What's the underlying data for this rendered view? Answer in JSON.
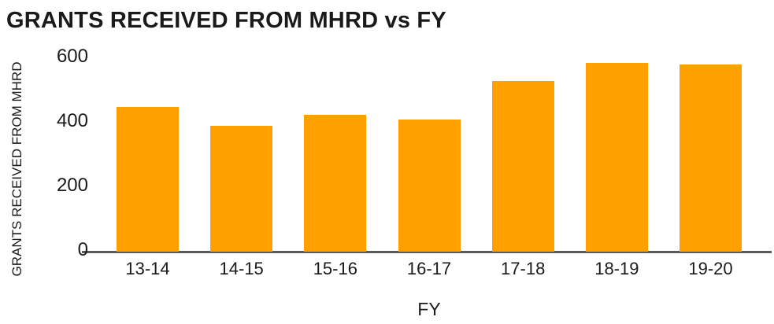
{
  "chart_data": {
    "type": "bar",
    "title": "GRANTS RECEIVED FROM MHRD vs FY",
    "xlabel": "FY",
    "ylabel": "GRANTS RECEIVED FROM MHRD",
    "categories": [
      "13-14",
      "14-15",
      "15-16",
      "16-17",
      "17-18",
      "18-19",
      "19-20"
    ],
    "values": [
      450,
      390,
      425,
      410,
      530,
      585,
      580
    ],
    "ylim": [
      0,
      600
    ],
    "yticks": [
      0,
      200,
      400,
      600
    ],
    "grid": false,
    "legend_position": "none",
    "bar_color": "#FFA000",
    "axis_color": "#58595b",
    "text_color": "#1a1a1a",
    "background_color": "#ffffff"
  }
}
